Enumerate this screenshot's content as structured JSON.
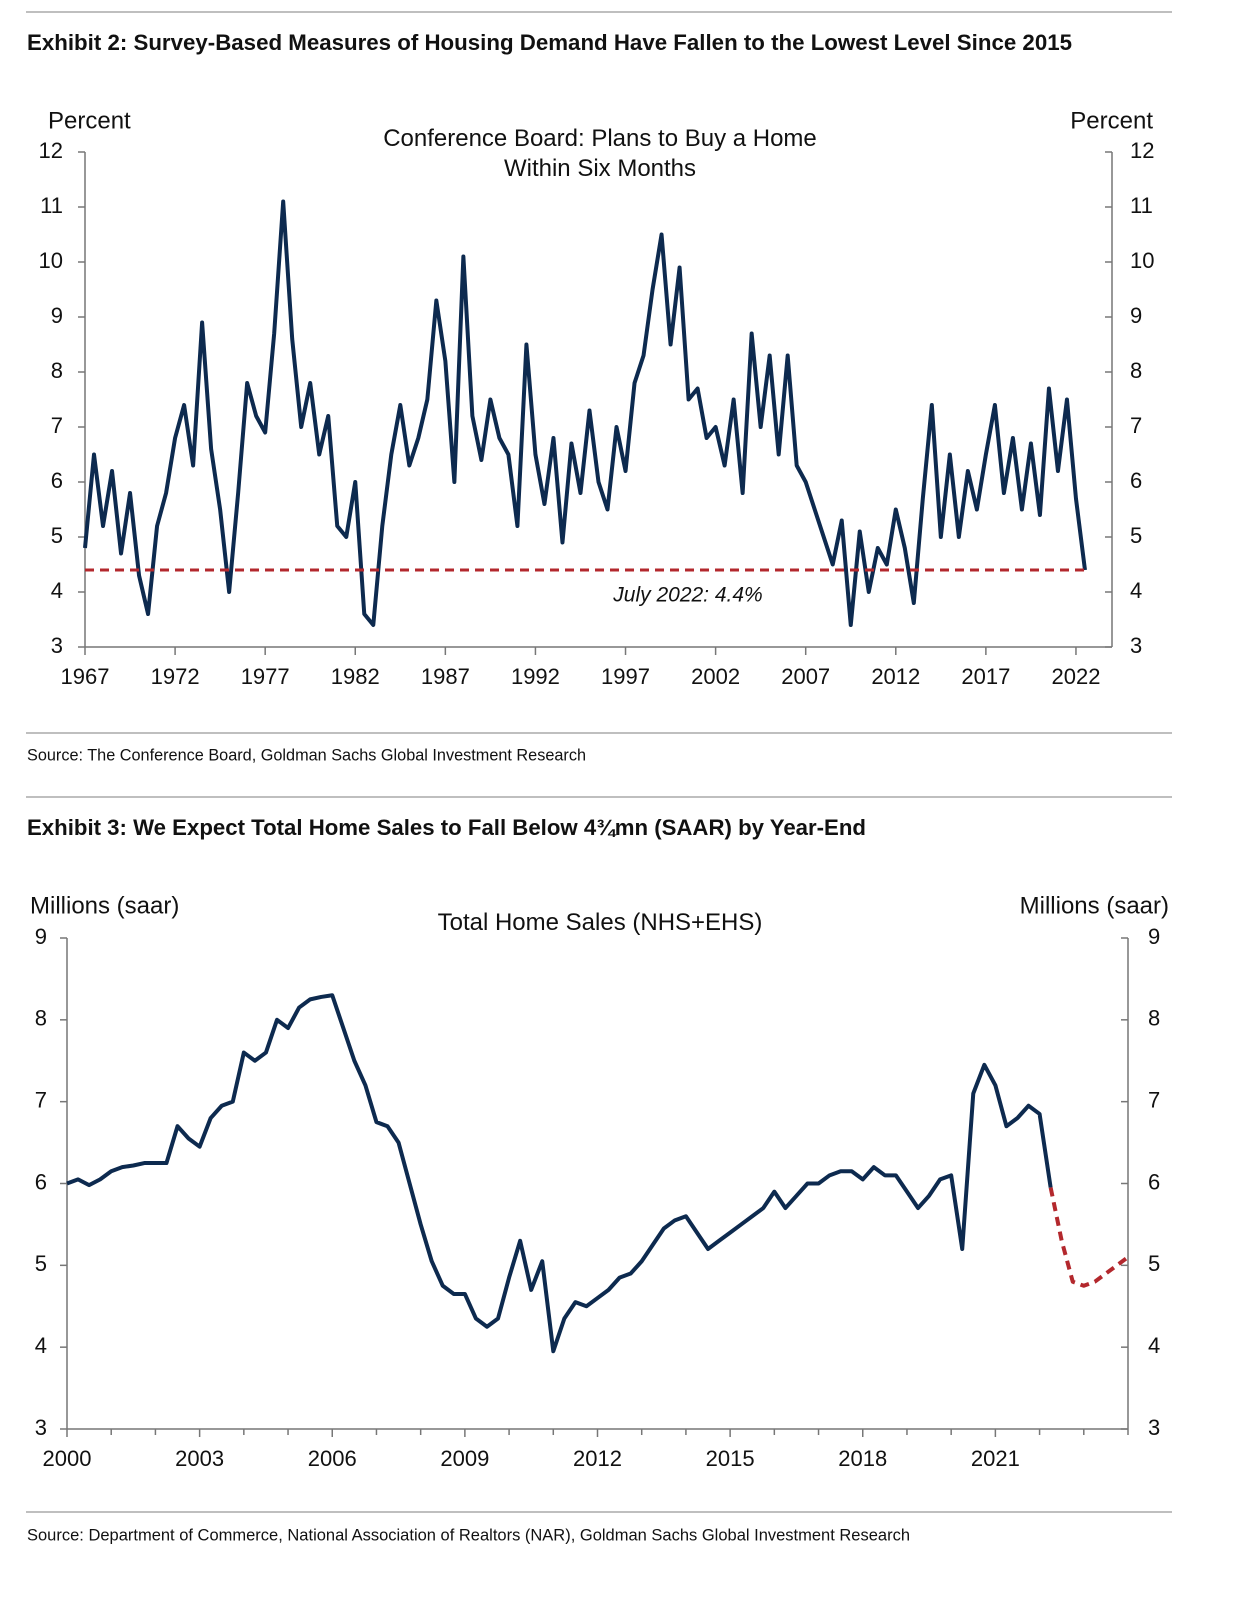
{
  "chart_data": [
    {
      "type": "line",
      "title": "Exhibit 2: Survey-Based Measures of Housing Demand Have Fallen to the Lowest Level Since 2015",
      "chart_title": "Conference Board: Plans to Buy a Home Within Six Months",
      "ylabel": "Percent",
      "y2label": "Percent",
      "source": "Source: The Conference Board, Goldman Sachs Global Investment Research",
      "xlim": [
        1967,
        2024
      ],
      "xticks": [
        1967,
        1972,
        1977,
        1982,
        1987,
        1992,
        1997,
        2002,
        2007,
        2012,
        2017,
        2022
      ],
      "ylim": [
        3,
        12
      ],
      "yticks": [
        3,
        4,
        5,
        6,
        7,
        8,
        9,
        10,
        11,
        12
      ],
      "y2lim": [
        3,
        12
      ],
      "y2ticks": [
        3,
        4,
        5,
        6,
        7,
        8,
        9,
        10,
        11,
        12
      ],
      "hline": {
        "value": 4.4,
        "label": "July 2022: 4.4%",
        "color": "#b3282d",
        "dashed": true
      },
      "series": [
        {
          "color": "#0d2a4f",
          "dashed": false,
          "x": [
            1967,
            1967.5,
            1968,
            1968.5,
            1969,
            1969.5,
            1970,
            1970.5,
            1971,
            1971.5,
            1972,
            1972.5,
            1973,
            1973.5,
            1974,
            1974.5,
            1975,
            1975.5,
            1976,
            1976.5,
            1977,
            1977.5,
            1978,
            1978.5,
            1979,
            1979.5,
            1980,
            1980.5,
            1981,
            1981.5,
            1982,
            1982.5,
            1983,
            1983.5,
            1984,
            1984.5,
            1985,
            1985.5,
            1986,
            1986.5,
            1987,
            1987.5,
            1988,
            1988.5,
            1989,
            1989.5,
            1990,
            1990.5,
            1991,
            1991.5,
            1992,
            1992.5,
            1993,
            1993.5,
            1994,
            1994.5,
            1995,
            1995.5,
            1996,
            1996.5,
            1997,
            1997.5,
            1998,
            1998.5,
            1999,
            1999.5,
            2000,
            2000.5,
            2001,
            2001.5,
            2002,
            2002.5,
            2003,
            2003.5,
            2004,
            2004.5,
            2005,
            2005.5,
            2006,
            2006.5,
            2007,
            2007.5,
            2008,
            2008.5,
            2009,
            2009.5,
            2010,
            2010.5,
            2011,
            2011.5,
            2012,
            2012.5,
            2013,
            2013.5,
            2014,
            2014.5,
            2015,
            2015.5,
            2016,
            2016.5,
            2017,
            2017.5,
            2018,
            2018.5,
            2019,
            2019.5,
            2020,
            2020.5,
            2021,
            2021.5,
            2022,
            2022.5
          ],
          "values": [
            4.8,
            6.5,
            5.2,
            6.2,
            4.7,
            5.8,
            4.3,
            3.6,
            5.2,
            5.8,
            6.8,
            7.4,
            6.3,
            8.9,
            6.6,
            5.5,
            4.0,
            5.8,
            7.8,
            7.2,
            6.9,
            8.7,
            11.1,
            8.6,
            7.0,
            7.8,
            6.5,
            7.2,
            5.2,
            5.0,
            6.0,
            3.6,
            3.4,
            5.2,
            6.5,
            7.4,
            6.3,
            6.8,
            7.5,
            9.3,
            8.2,
            6.0,
            10.1,
            7.2,
            6.4,
            7.5,
            6.8,
            6.5,
            5.2,
            8.5,
            6.5,
            5.6,
            6.8,
            4.9,
            6.7,
            5.8,
            7.3,
            6.0,
            5.5,
            7.0,
            6.2,
            7.8,
            8.3,
            9.5,
            10.5,
            8.5,
            9.9,
            7.5,
            7.7,
            6.8,
            7.0,
            6.3,
            7.5,
            5.8,
            8.7,
            7.0,
            8.3,
            6.5,
            8.3,
            6.3,
            6.0,
            5.5,
            5.0,
            4.5,
            5.3,
            3.4,
            5.1,
            4.0,
            4.8,
            4.5,
            5.5,
            4.8,
            3.8,
            5.7,
            7.4,
            5.0,
            6.5,
            5.0,
            6.2,
            5.5,
            6.5,
            7.4,
            5.8,
            6.8,
            5.5,
            6.7,
            5.4,
            7.7,
            6.2,
            7.5,
            5.7,
            4.4
          ]
        }
      ]
    },
    {
      "type": "line",
      "title": "Exhibit 3: We Expect Total Home Sales to Fall Below 4¾mn (SAAR) by Year-End",
      "chart_title": "Total Home Sales (NHS+EHS)",
      "ylabel": "Millions (saar)",
      "y2label": "Millions (saar)",
      "source": "Source: Department of Commerce, National Association of Realtors (NAR), Goldman Sachs Global Investment Research",
      "xlim": [
        2000,
        2024
      ],
      "xticks": [
        2000,
        2003,
        2006,
        2009,
        2012,
        2015,
        2018,
        2021
      ],
      "xminorticks": [
        2001,
        2002,
        2004,
        2005,
        2007,
        2008,
        2010,
        2011,
        2013,
        2014,
        2016,
        2017,
        2019,
        2020,
        2022,
        2023,
        2024
      ],
      "ylim": [
        3,
        9
      ],
      "yticks": [
        3,
        4,
        5,
        6,
        7,
        8,
        9
      ],
      "y2lim": [
        3,
        9
      ],
      "y2ticks": [
        3,
        4,
        5,
        6,
        7,
        8,
        9
      ],
      "series": [
        {
          "color": "#0d2a4f",
          "dashed": false,
          "x": [
            2000,
            2000.25,
            2000.5,
            2000.75,
            2001,
            2001.25,
            2001.5,
            2001.75,
            2002,
            2002.25,
            2002.5,
            2002.75,
            2003,
            2003.25,
            2003.5,
            2003.75,
            2004,
            2004.25,
            2004.5,
            2004.75,
            2005,
            2005.25,
            2005.5,
            2005.75,
            2006,
            2006.25,
            2006.5,
            2006.75,
            2007,
            2007.25,
            2007.5,
            2007.75,
            2008,
            2008.25,
            2008.5,
            2008.75,
            2009,
            2009.25,
            2009.5,
            2009.75,
            2010,
            2010.25,
            2010.5,
            2010.75,
            2011,
            2011.25,
            2011.5,
            2011.75,
            2012,
            2012.25,
            2012.5,
            2012.75,
            2013,
            2013.25,
            2013.5,
            2013.75,
            2014,
            2014.25,
            2014.5,
            2014.75,
            2015,
            2015.25,
            2015.5,
            2015.75,
            2016,
            2016.25,
            2016.5,
            2016.75,
            2017,
            2017.25,
            2017.5,
            2017.75,
            2018,
            2018.25,
            2018.5,
            2018.75,
            2019,
            2019.25,
            2019.5,
            2019.75,
            2020,
            2020.25,
            2020.5,
            2020.75,
            2021,
            2021.25,
            2021.5,
            2021.75,
            2022,
            2022.25
          ],
          "values": [
            6.0,
            6.05,
            5.98,
            6.05,
            6.15,
            6.2,
            6.22,
            6.25,
            6.25,
            6.25,
            6.7,
            6.55,
            6.45,
            6.8,
            6.95,
            7.0,
            7.6,
            7.5,
            7.6,
            8.0,
            7.9,
            8.15,
            8.25,
            8.28,
            8.3,
            7.9,
            7.5,
            7.2,
            6.75,
            6.7,
            6.5,
            6.0,
            5.5,
            5.05,
            4.75,
            4.65,
            4.65,
            4.35,
            4.25,
            4.35,
            4.85,
            5.3,
            4.7,
            5.05,
            3.95,
            4.35,
            4.55,
            4.5,
            4.6,
            4.7,
            4.85,
            4.9,
            5.05,
            5.25,
            5.45,
            5.55,
            5.6,
            5.4,
            5.2,
            5.3,
            5.4,
            5.5,
            5.6,
            5.7,
            5.9,
            5.7,
            5.85,
            6.0,
            6.0,
            6.1,
            6.15,
            6.15,
            6.05,
            6.2,
            6.1,
            6.1,
            5.9,
            5.7,
            5.85,
            6.05,
            6.1,
            5.2,
            7.1,
            7.45,
            7.2,
            6.7,
            6.8,
            6.95,
            6.85,
            5.95
          ]
        },
        {
          "color": "#b3282d",
          "dashed": true,
          "x": [
            2022.25,
            2022.5,
            2022.75,
            2023,
            2023.25,
            2023.5,
            2023.75,
            2024
          ],
          "values": [
            5.95,
            5.3,
            4.8,
            4.75,
            4.8,
            4.9,
            5.0,
            5.1
          ]
        }
      ]
    }
  ]
}
